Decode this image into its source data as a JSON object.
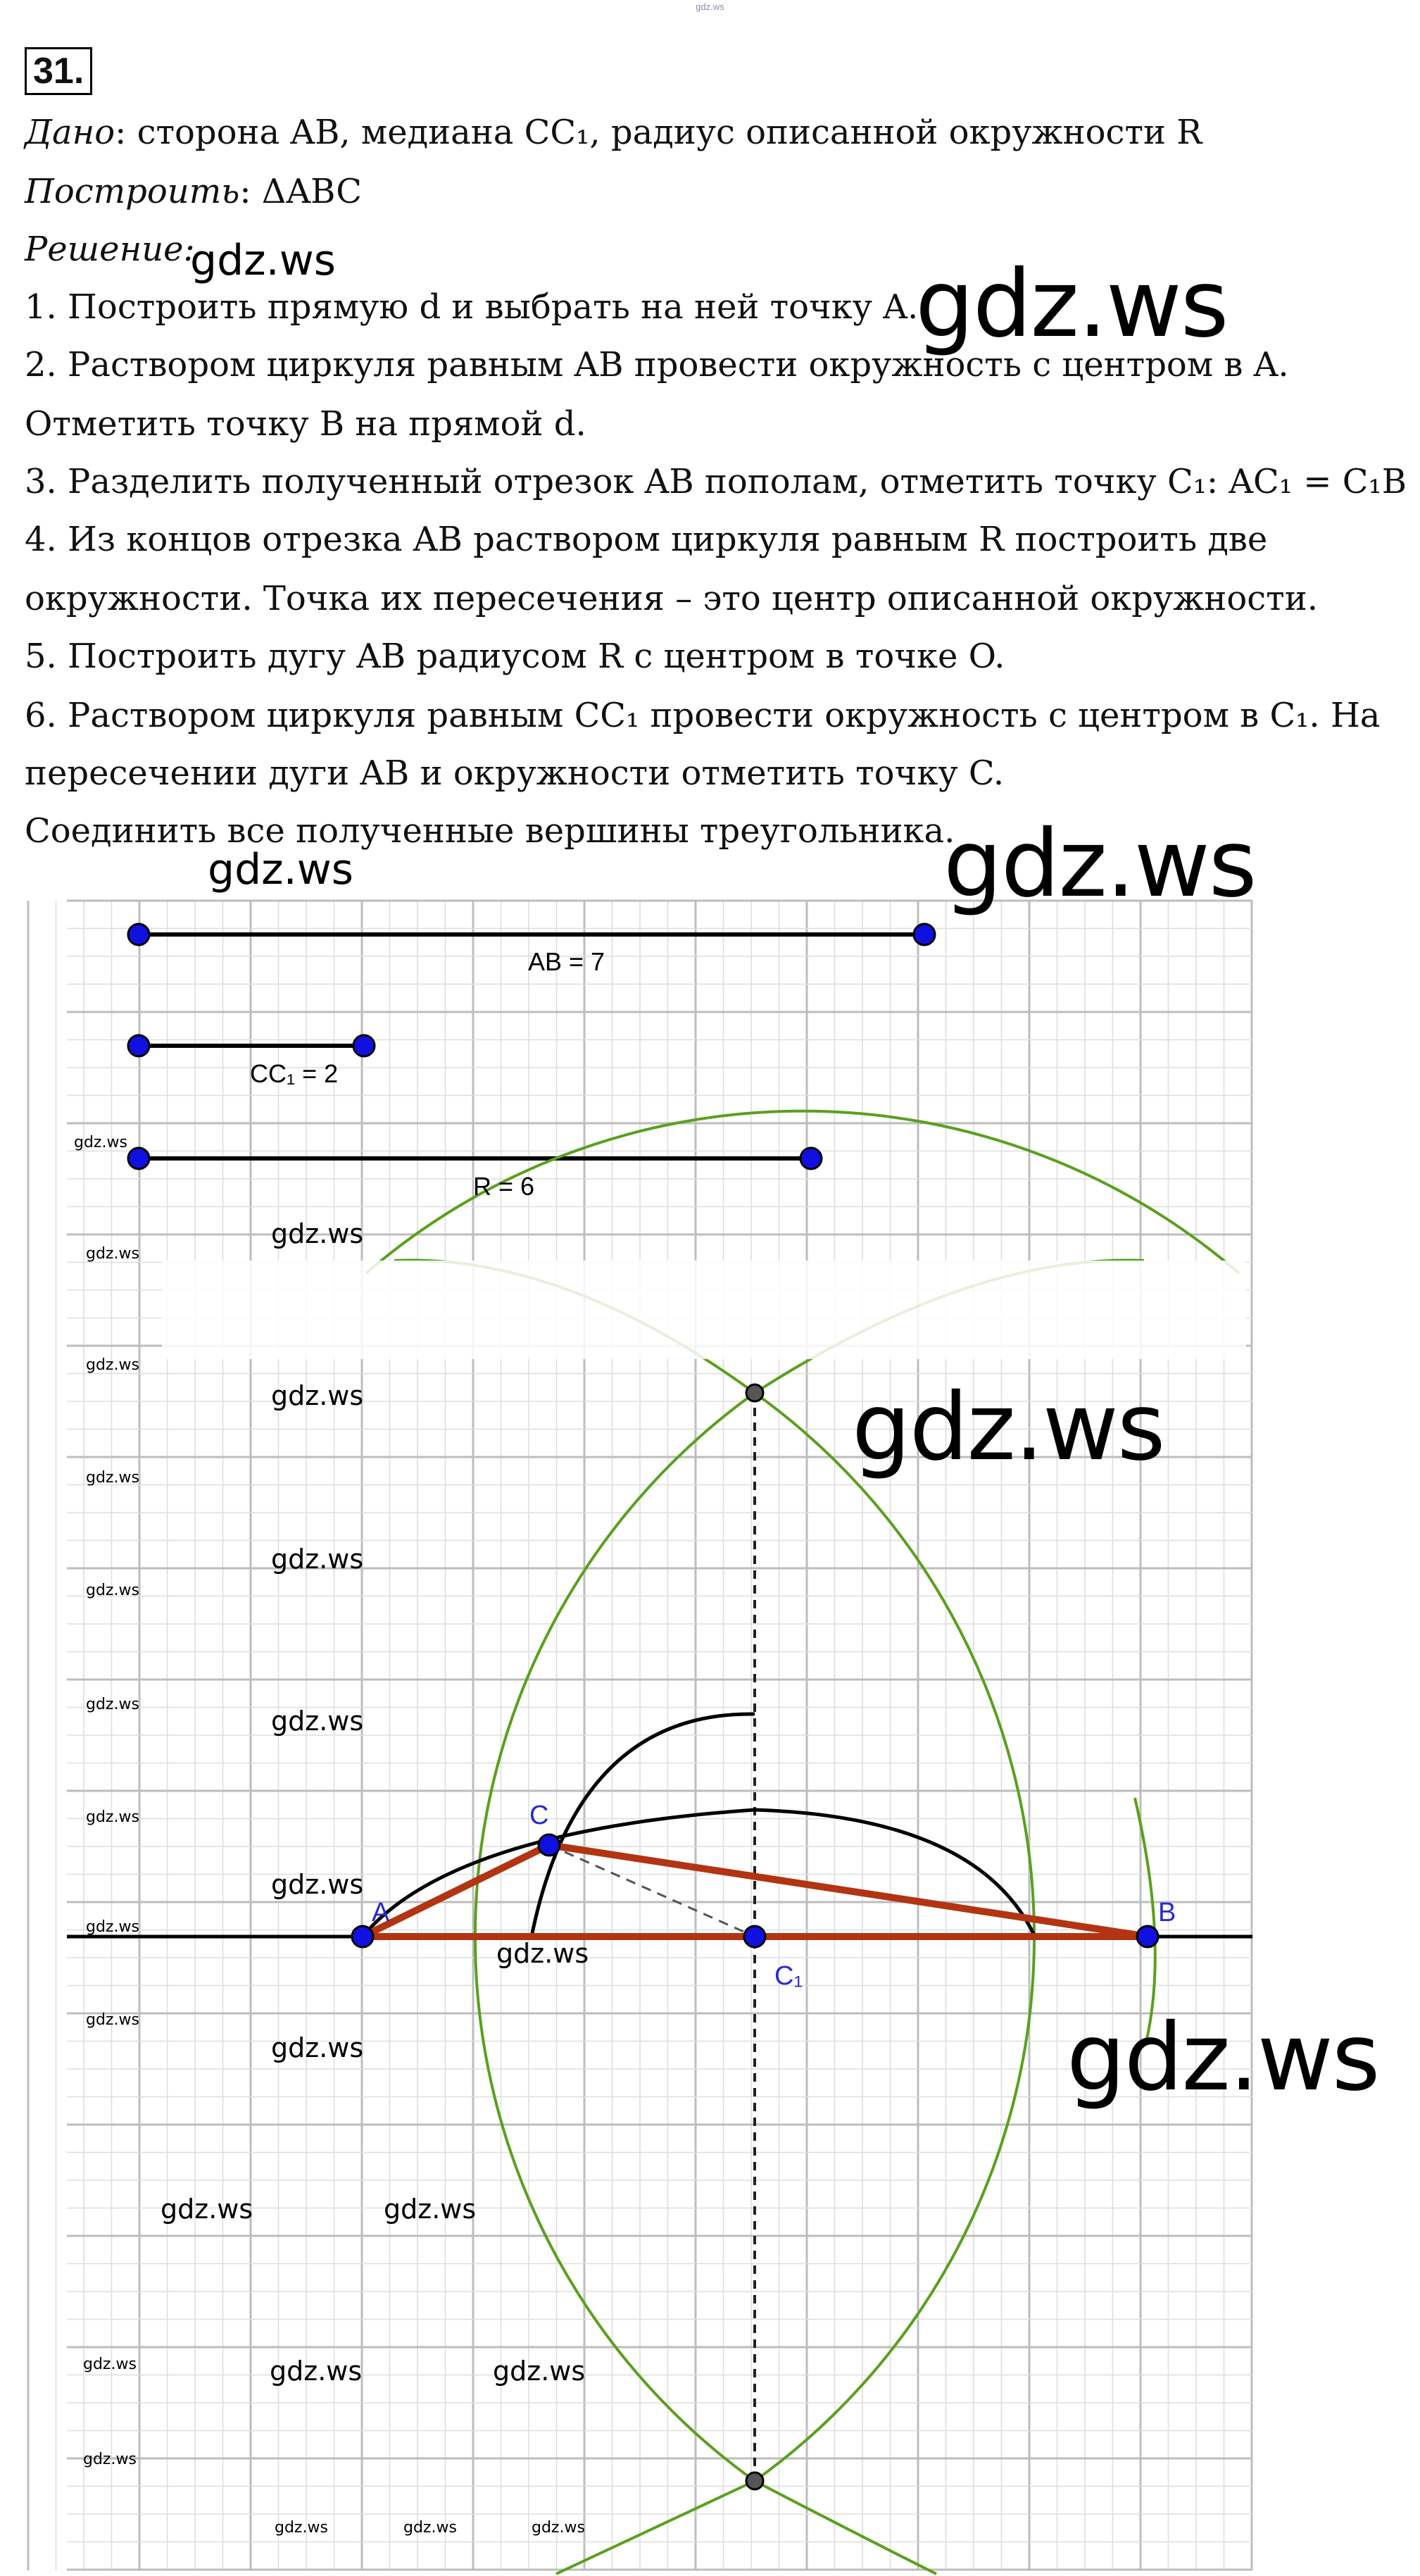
{
  "header_mark": "gdz.ws",
  "task_number": "31.",
  "given": {
    "label": "Дано",
    "text": ": сторона AB, медиана CC₁, радиус описанной окружности R"
  },
  "construct": {
    "label": "Построить",
    "text": ": ΔABC"
  },
  "solution_label": "Решение:",
  "steps": [
    "1. Построить прямую d и выбрать на ней точку A.",
    "2. Раствором циркуля равным AB провести окружность с центром в A.",
    "Отметить точку B на прямой d.",
    "3. Разделить полученный отрезок AB пополам, отметить точку C₁: AC₁ = C₁B",
    "4. Из концов отрезка AB раствором циркуля равным R построить две",
    "окружности. Точка их пересечения – это центр описанной окружности.",
    "5. Построить дугу AB радиусом R с центром в точке O.",
    "6. Раствором циркуля равным CC₁ провести окружность с центром в C₁. На",
    "пересечении дуги AB и окружности отметить точку C.",
    "Соединить все полученные вершины треугольника."
  ],
  "figure": {
    "segment_labels": {
      "ab": "AB = 7",
      "cc1": "CC₁ = 2",
      "r": "R = 6"
    },
    "point_labels": {
      "a": "A",
      "b": "B",
      "c": "C",
      "c1": "C₁"
    },
    "colors": {
      "triangle": "#b23412",
      "circles": "#5aa01e",
      "points": "#1010e0",
      "grid": "#c8c8c8",
      "label": "#2a2ad0"
    }
  },
  "watermark": "gdz.ws"
}
